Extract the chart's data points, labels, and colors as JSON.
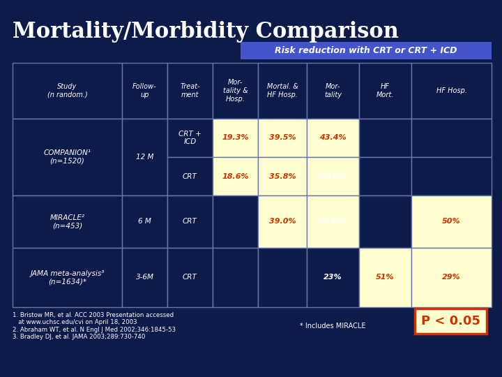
{
  "title": "Mortality/Morbidity Comparison",
  "subtitle": "Risk reduction with CRT or CRT + ICD",
  "bg_color": "#0d1b4b",
  "title_color": "#ffffff",
  "subtitle_color": "#ffffff",
  "subtitle_bg": "#4455cc",
  "table_border_color": "#6677aa",
  "cell_dark_bg": "#0d1b4b",
  "cell_highlight_bg": "#ffffd0",
  "cell_orange_text": "#cc3300",
  "cell_white_text": "#ffffff",
  "footnote_text": "1. Bristow MR, et al. ACC 2003 Presentation accessed\n   at www.uchsc.edu/cvi on April 18, 2003\n2. Abraham WT, et al. N Engl J Med 2002;346:1845-53\n3. Bradley DJ, et al. JAMA 2003;289:730-740",
  "p_value_text": "P < 0.05",
  "includes_miracle": "* Includes MIRACLE",
  "col_headers": [
    "Study\n(n random.)",
    "Follow-\nup",
    "Treat-\nment",
    "Mor-\ntality &\nHosp.",
    "Mortal. &\nHF Hosp.",
    "Mor-\ntality",
    "HF\nMort.",
    "HF Hosp."
  ]
}
